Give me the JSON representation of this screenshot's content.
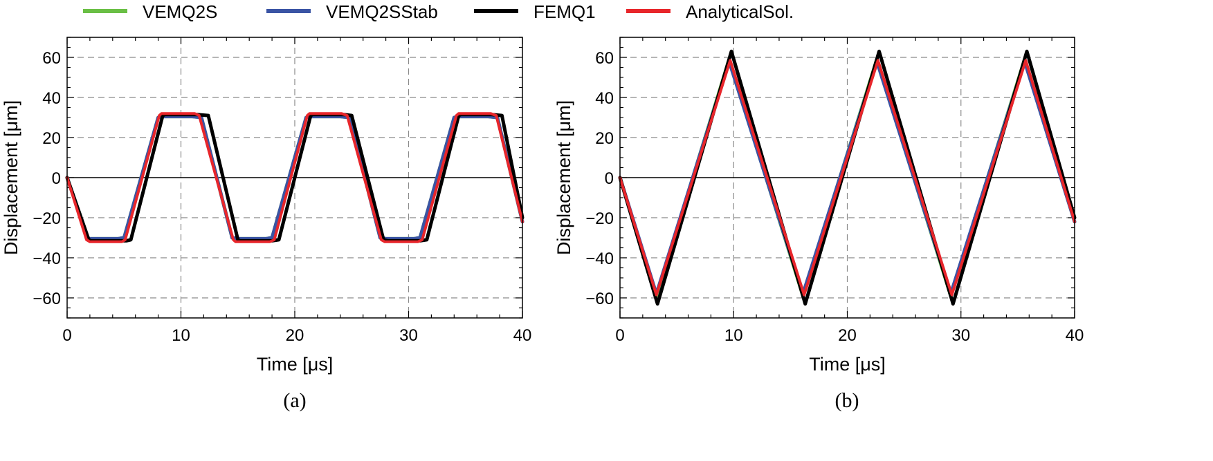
{
  "legend": [
    {
      "label": "VEMQ2S",
      "color": "#6abf45"
    },
    {
      "label": "VEMQ2SStab",
      "color": "#3a54a4"
    },
    {
      "label": "FEMQ1",
      "color": "#000000"
    },
    {
      "label": "AnalyticalSol.",
      "color": "#e8262b"
    }
  ],
  "chart_data": [
    {
      "type": "line",
      "panel": "(a)",
      "xlabel": "Time [μs]",
      "ylabel": "Displacement [μm]",
      "xlim": [
        0,
        40
      ],
      "ylim": [
        -70,
        70
      ],
      "xticks": [
        0,
        10,
        20,
        30,
        40
      ],
      "yticks": [
        -60,
        -40,
        -20,
        0,
        20,
        40,
        60
      ],
      "grid": true,
      "series": [
        {
          "name": "VEMQ2S",
          "color": "#6abf45",
          "x": [
            0,
            1.8,
            2.0,
            4.5,
            5.0,
            8.0,
            8.3,
            11.0,
            11.8,
            14.5,
            15.0,
            17.5,
            18.0,
            21.0,
            21.3,
            24.0,
            24.8,
            27.5,
            28.0,
            30.5,
            31.0,
            34.0,
            34.3,
            37.0,
            37.8,
            40
          ],
          "y": [
            0,
            -30,
            -30.5,
            -30.5,
            -30,
            30,
            30.5,
            30.5,
            30,
            -30,
            -30.5,
            -30.5,
            -30,
            30,
            30.5,
            30.5,
            30,
            -30,
            -30.5,
            -30.5,
            -30,
            30,
            30.5,
            30.5,
            30,
            -22
          ]
        },
        {
          "name": "VEMQ2SStab",
          "color": "#3a54a4",
          "x": [
            0,
            1.8,
            2.0,
            4.5,
            5.0,
            8.0,
            8.3,
            11.0,
            11.8,
            14.5,
            15.0,
            17.5,
            18.0,
            21.0,
            21.3,
            24.0,
            24.8,
            27.5,
            28.0,
            30.5,
            31.0,
            34.0,
            34.3,
            37.0,
            37.8,
            40
          ],
          "y": [
            0,
            -30,
            -30.5,
            -30.5,
            -30,
            30,
            30.5,
            30.5,
            30,
            -30,
            -30.5,
            -30.5,
            -30,
            30,
            30.5,
            30.5,
            30,
            -30,
            -30.5,
            -30.5,
            -30,
            30,
            30.5,
            30.5,
            30,
            -22
          ]
        },
        {
          "name": "FEMQ1",
          "color": "#000000",
          "x": [
            0,
            1.9,
            2.1,
            5.2,
            5.6,
            8.4,
            8.6,
            11.4,
            12.4,
            15.0,
            15.2,
            18.0,
            18.6,
            21.4,
            21.6,
            24.3,
            25.0,
            27.8,
            28.2,
            31.0,
            31.6,
            34.4,
            34.6,
            37.3,
            38.2,
            40
          ],
          "y": [
            0,
            -31,
            -31.5,
            -31.5,
            -31,
            31,
            31.5,
            31.5,
            31,
            -31,
            -31.5,
            -31.5,
            -31,
            31,
            31.5,
            31.5,
            31,
            -31,
            -31.5,
            -31.5,
            -31,
            31,
            31.5,
            31.5,
            31,
            -20
          ]
        },
        {
          "name": "AnalyticalSol.",
          "color": "#e8262b",
          "x": [
            0,
            1.7,
            2.0,
            4.8,
            5.1,
            8.1,
            8.3,
            11.2,
            11.6,
            14.6,
            14.8,
            17.8,
            18.2,
            21.1,
            21.3,
            24.1,
            24.6,
            27.6,
            27.9,
            30.8,
            31.2,
            34.2,
            34.4,
            37.2,
            37.7,
            40
          ],
          "y": [
            0,
            -31,
            -32,
            -32,
            -31,
            31,
            32,
            32,
            31,
            -31,
            -32,
            -32,
            -31,
            31,
            32,
            32,
            31,
            -31,
            -32,
            -32,
            -31,
            31,
            32,
            32,
            31,
            -22
          ]
        }
      ]
    },
    {
      "type": "line",
      "panel": "(b)",
      "xlabel": "Time [μs]",
      "ylabel": "Displacement [μm]",
      "xlim": [
        0,
        40
      ],
      "ylim": [
        -70,
        70
      ],
      "xticks": [
        0,
        10,
        20,
        30,
        40
      ],
      "yticks": [
        -60,
        -40,
        -20,
        0,
        20,
        40,
        60
      ],
      "grid": true,
      "series": [
        {
          "name": "VEMQ2S",
          "color": "#6abf45",
          "x": [
            0,
            3.2,
            9.6,
            16.1,
            22.6,
            29.1,
            35.6,
            40
          ],
          "y": [
            0,
            -59,
            59,
            -59,
            59,
            -59,
            59,
            -22
          ]
        },
        {
          "name": "VEMQ2SStab",
          "color": "#3a54a4",
          "x": [
            0,
            3.2,
            9.6,
            16.1,
            22.6,
            29.1,
            35.6,
            40
          ],
          "y": [
            0,
            -58,
            58,
            -58,
            58,
            -58,
            58,
            -22
          ]
        },
        {
          "name": "FEMQ1",
          "color": "#000000",
          "x": [
            0,
            3.3,
            9.8,
            16.3,
            22.8,
            29.3,
            35.8,
            40
          ],
          "y": [
            0,
            -63,
            63,
            -63,
            63,
            -63,
            63,
            -20
          ]
        },
        {
          "name": "AnalyticalSol.",
          "color": "#e8262b",
          "x": [
            0,
            3.2,
            9.7,
            16.2,
            22.7,
            29.2,
            35.7,
            40
          ],
          "y": [
            0,
            -58.5,
            58.5,
            -58.5,
            58.5,
            -58.5,
            58.5,
            -22
          ]
        }
      ]
    }
  ]
}
